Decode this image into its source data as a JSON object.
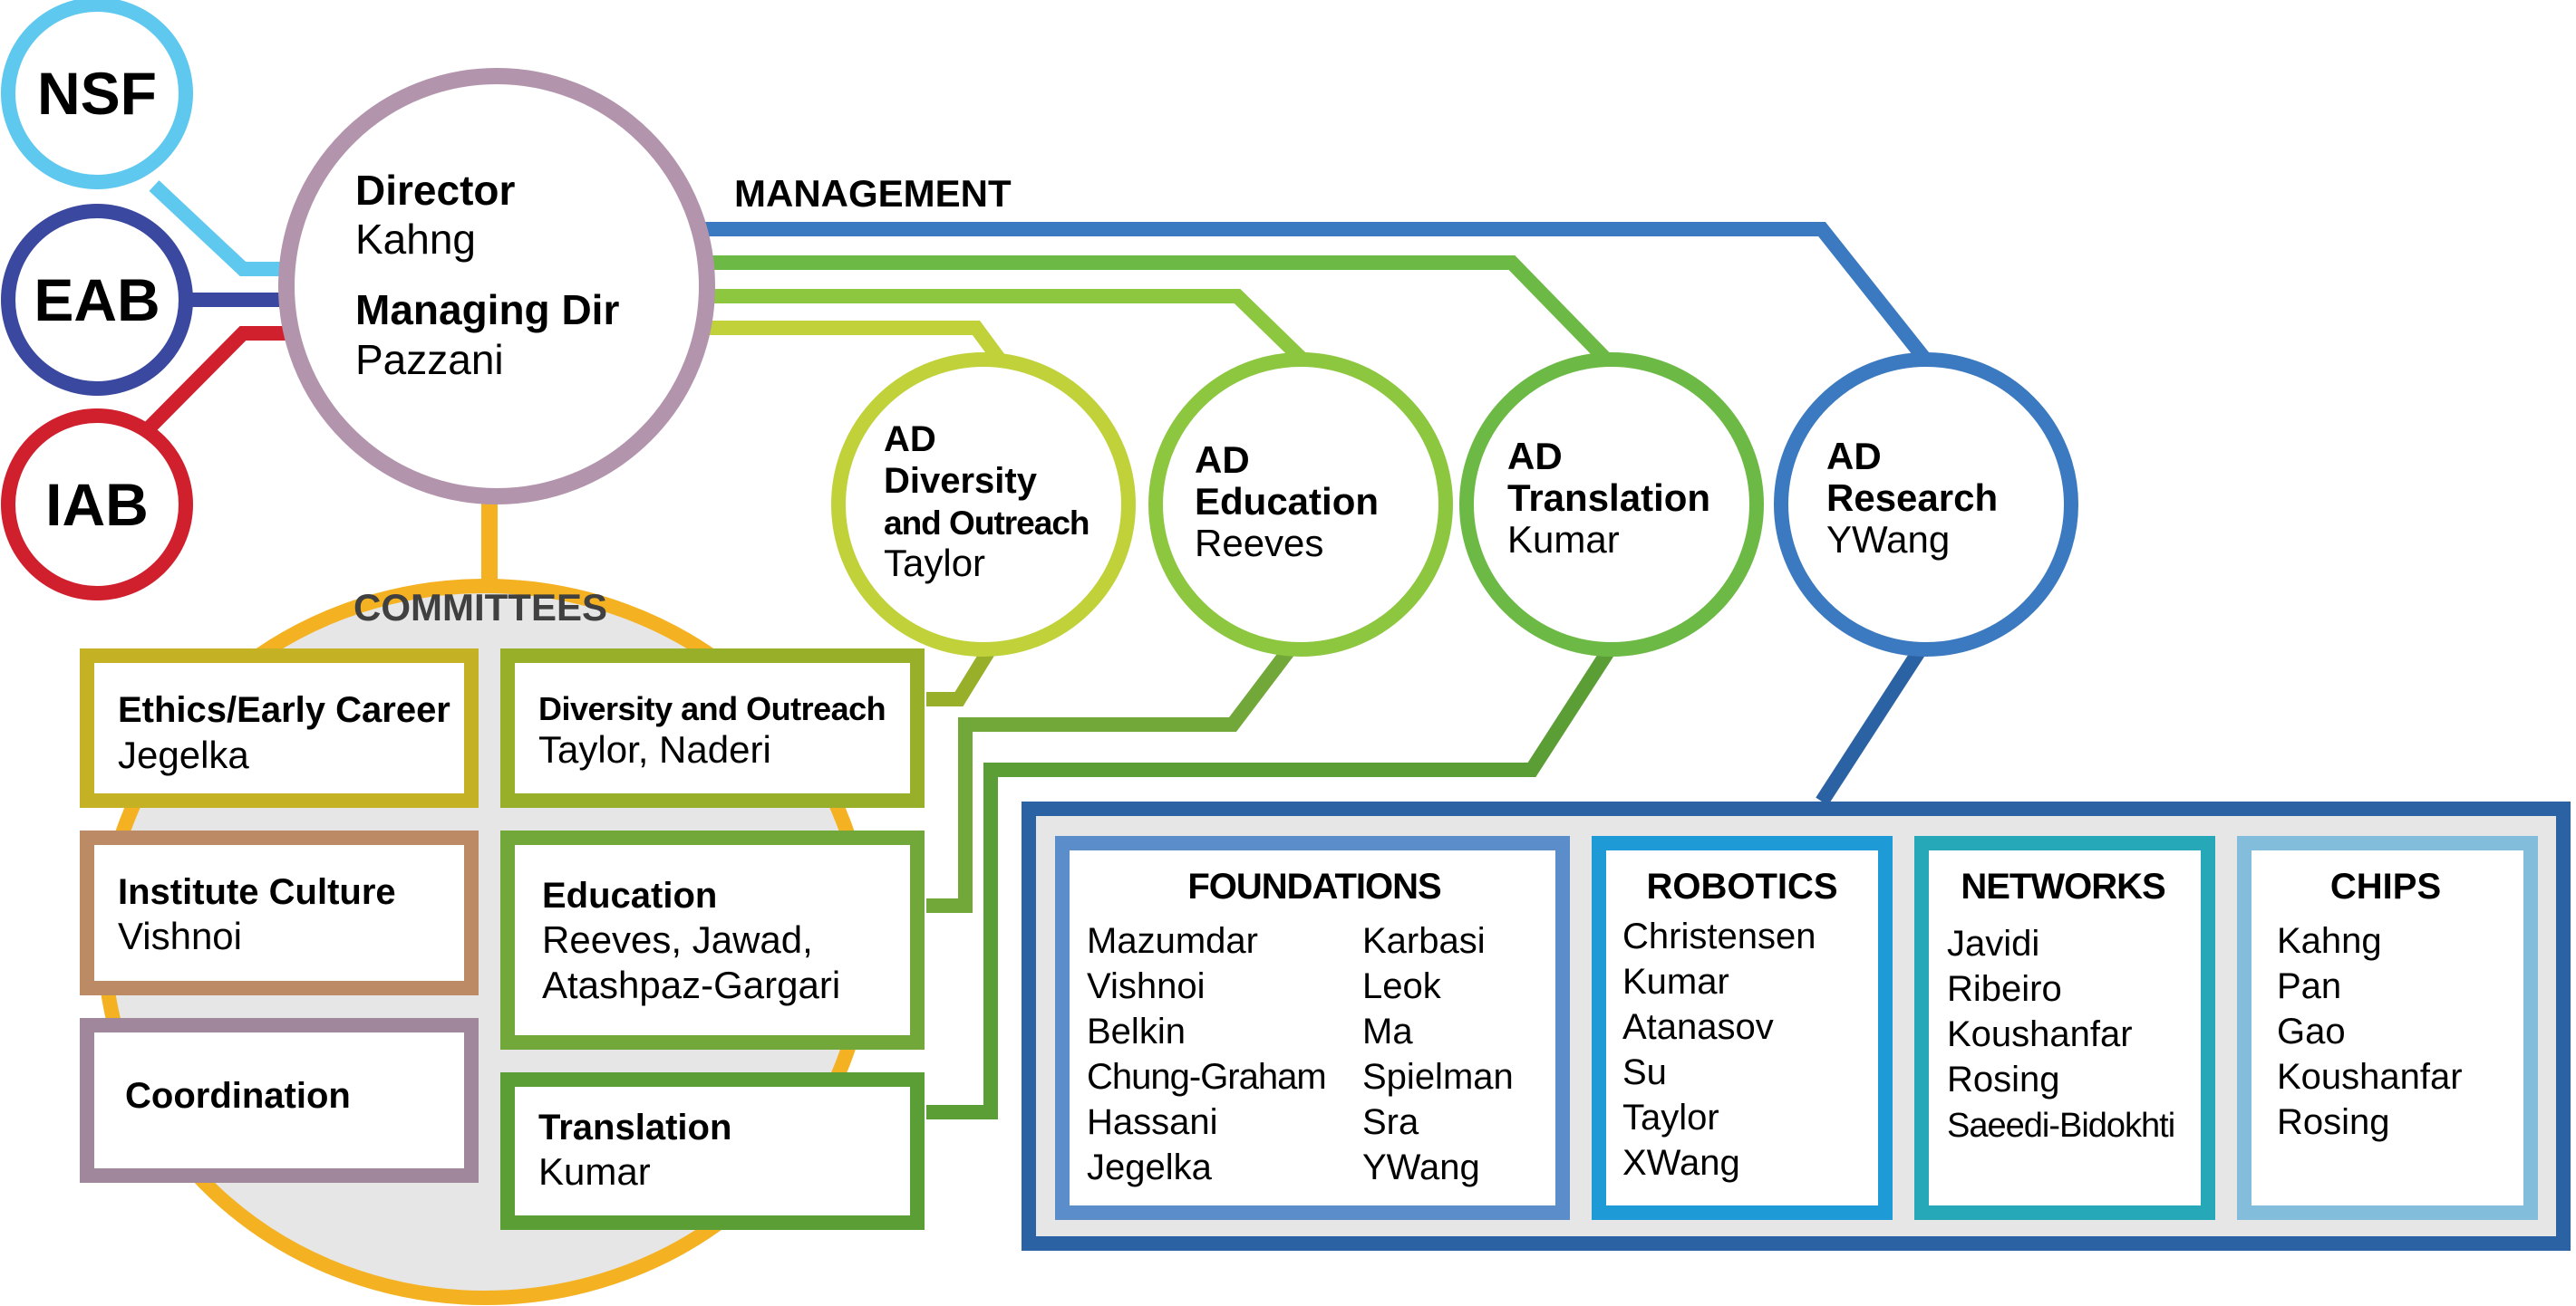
{
  "labels": {
    "management": "MANAGEMENT",
    "committees": "COMMITTEES"
  },
  "oversight": [
    {
      "id": "nsf",
      "label": "NSF",
      "color": "#5fc8ef"
    },
    {
      "id": "eab",
      "label": "EAB",
      "color": "#3b48a0"
    },
    {
      "id": "iab",
      "label": "IAB",
      "color": "#d0202e"
    }
  ],
  "director": {
    "title": "Director",
    "name": "Kahng",
    "managing_title": "Managing Dir",
    "managing_name": "Pazzani",
    "color": "#b394ad"
  },
  "ads": [
    {
      "id": "diversity",
      "lines": [
        "AD",
        "Diversity",
        "and Outreach"
      ],
      "name": "Taylor",
      "color": "#c1d13a"
    },
    {
      "id": "education",
      "lines": [
        "AD",
        "Education"
      ],
      "name": "Reeves",
      "color": "#8dc63f"
    },
    {
      "id": "translation",
      "lines": [
        "AD",
        "Translation"
      ],
      "name": "Kumar",
      "color": "#6cba45"
    },
    {
      "id": "research",
      "lines": [
        "AD",
        "Research"
      ],
      "name": "YWang",
      "color": "#3b7ac0"
    }
  ],
  "committees": [
    {
      "id": "ethics",
      "title": "Ethics/Early Career",
      "members": [
        "Jegelka"
      ],
      "color": "#c4b124"
    },
    {
      "id": "culture",
      "title": "Institute Culture",
      "members": [
        "Vishnoi"
      ],
      "color": "#bd8a66"
    },
    {
      "id": "coordination",
      "title": "Coordination",
      "members": [],
      "color": "#a1879c"
    },
    {
      "id": "diversity",
      "title": "Diversity and Outreach",
      "members": [
        "Taylor, Naderi"
      ],
      "color": "#98af2a"
    },
    {
      "id": "education",
      "title": "Education",
      "members": [
        "Reeves, Jawad,",
        "Atashpaz-Gargari"
      ],
      "color": "#72a83a"
    },
    {
      "id": "translation",
      "title": "Translation",
      "members": [
        "Kumar"
      ],
      "color": "#5c9e36"
    }
  ],
  "research_areas": [
    {
      "id": "foundations",
      "title": "FOUNDATIONS",
      "color": "#5b8dcb",
      "col1": [
        "Mazumdar",
        "Vishnoi",
        "Belkin",
        "Chung-Graham",
        "Hassani",
        "Jegelka"
      ],
      "col2": [
        "Karbasi",
        "Leok",
        "Ma",
        "Spielman",
        "Sra",
        "YWang"
      ]
    },
    {
      "id": "robotics",
      "title": "ROBOTICS",
      "color": "#1e9ad6",
      "col1": [
        "Christensen",
        "Kumar",
        "Atanasov",
        "Su",
        "Taylor",
        "XWang"
      ],
      "col2": []
    },
    {
      "id": "networks",
      "title": "NETWORKS",
      "color": "#27a8b9",
      "col1": [
        "Javidi",
        "Ribeiro",
        "Koushanfar",
        "Rosing",
        "Saeedi-Bidokhti"
      ],
      "col2": []
    },
    {
      "id": "chips",
      "title": "CHIPS",
      "color": "#82bedc",
      "col1": [
        "Kahng",
        "Pan",
        "Gao",
        "Koushanfar",
        "Rosing"
      ],
      "col2": []
    }
  ],
  "colors": {
    "committee_ring": "#f4b223",
    "committee_fill": "#e6e6e6",
    "research_frame": "#2b62a3",
    "research_fill": "#e6e6e6",
    "text": "#000000",
    "heading_gray": "#404040"
  }
}
